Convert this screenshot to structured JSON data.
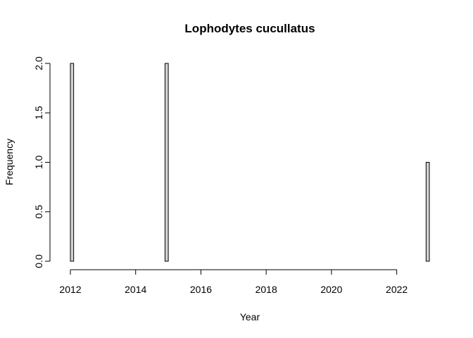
{
  "chart_data": {
    "type": "bar",
    "title": "Lophodytes cucullatus",
    "xlabel": "Year",
    "ylabel": "Frequency",
    "xlim": [
      2012,
      2023
    ],
    "ylim": [
      0,
      2
    ],
    "x_ticks": [
      2012,
      2014,
      2016,
      2018,
      2020,
      2022
    ],
    "x_tick_labels": [
      "2012",
      "2014",
      "2016",
      "2018",
      "2020",
      "2022"
    ],
    "y_ticks": [
      0,
      0.5,
      1,
      1.5,
      2
    ],
    "y_tick_labels": [
      "0.0",
      "0.5",
      "1.0",
      "1.5",
      "2.0"
    ],
    "bin_width": 0.1,
    "bins": [
      {
        "x0": 2012.0,
        "x1": 2012.1,
        "value": 2
      },
      {
        "x0": 2014.9,
        "x1": 2015.0,
        "value": 2
      },
      {
        "x0": 2022.9,
        "x1": 2023.0,
        "value": 1
      }
    ],
    "grid": false,
    "bar_fill": "#d3d3d3",
    "bar_stroke": "#000000"
  }
}
